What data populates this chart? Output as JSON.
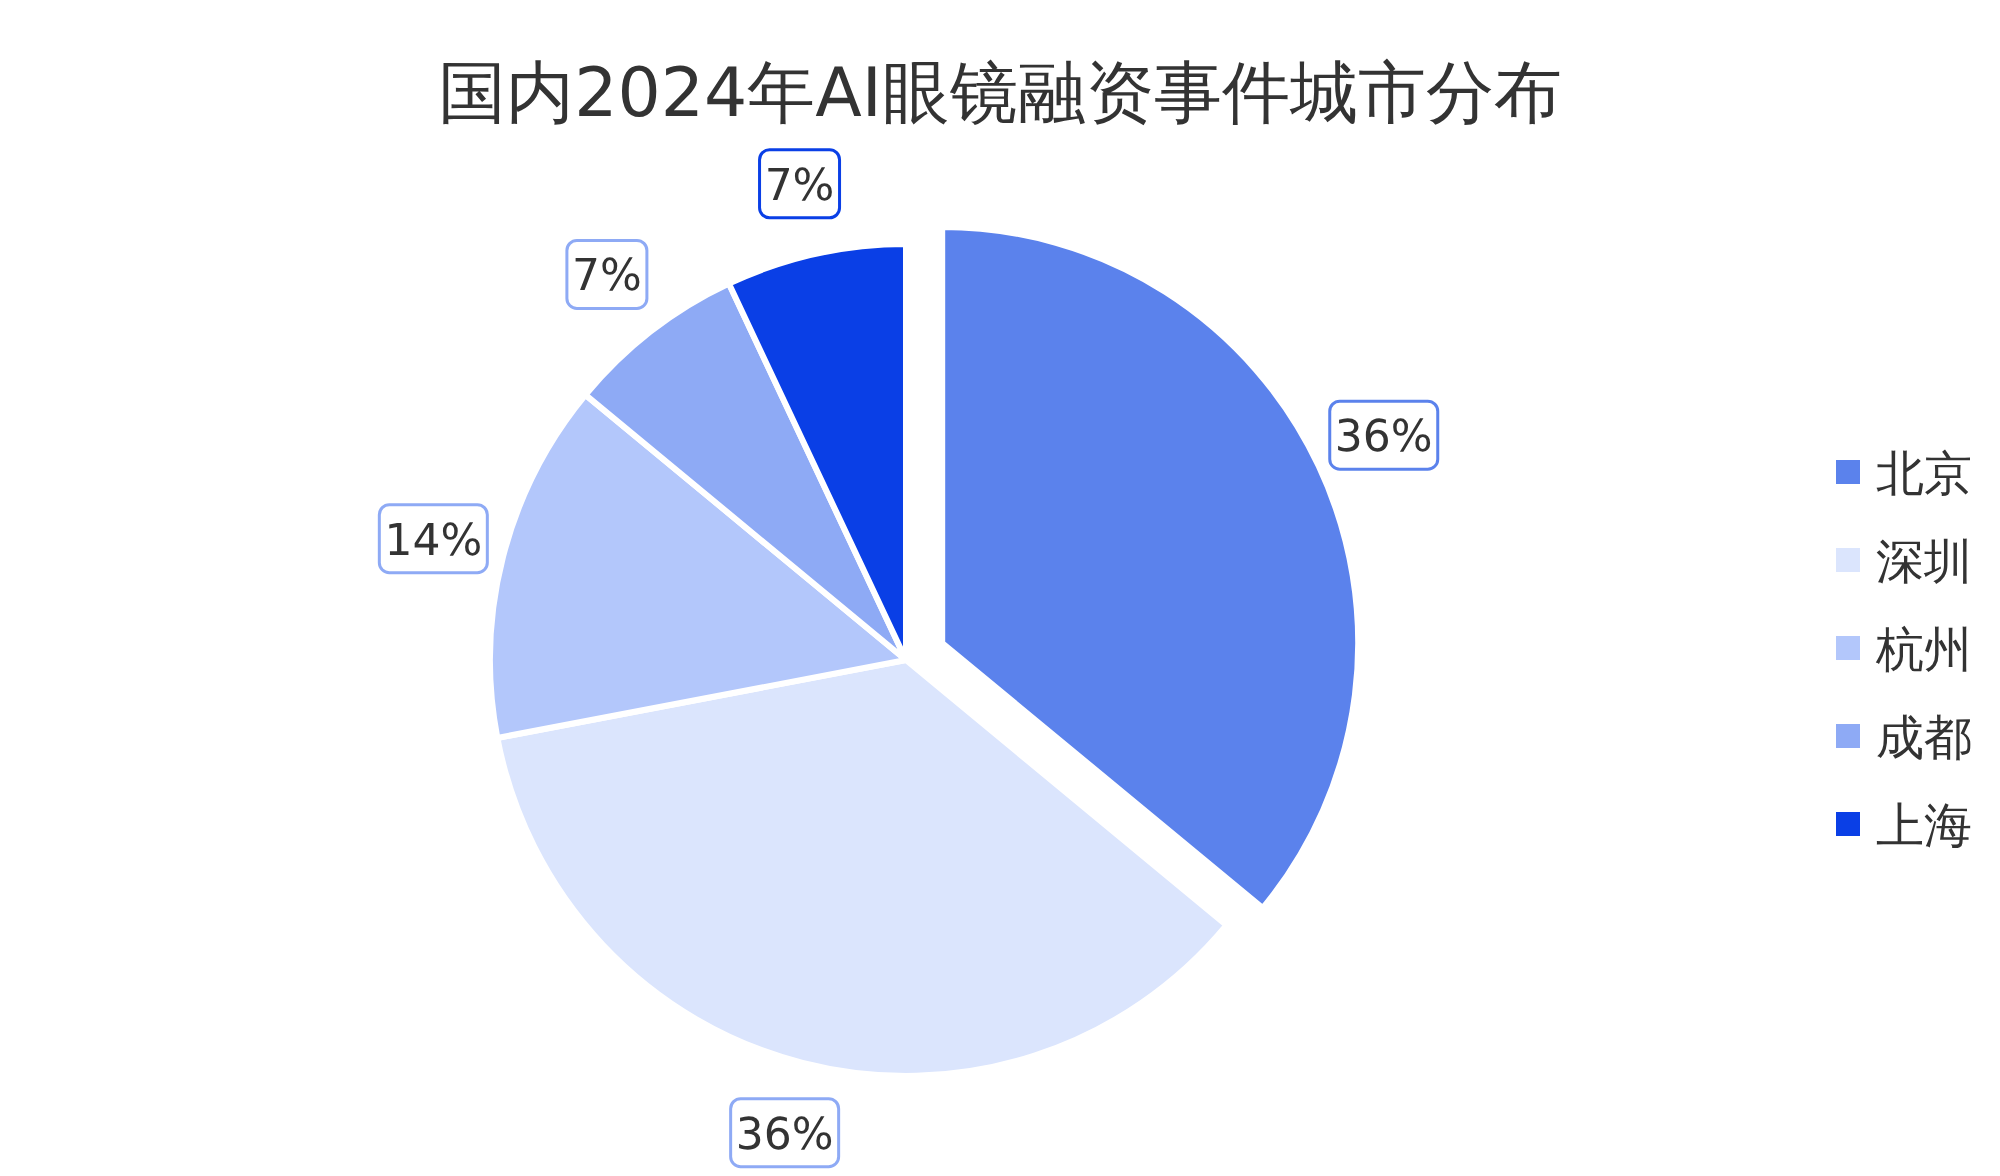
{
  "chart_data": {
    "type": "pie",
    "title": "国内2024年AI眼镜融资事件城市分布",
    "categories": [
      "北京",
      "深圳",
      "杭州",
      "成都",
      "上海"
    ],
    "values": [
      36,
      36,
      14,
      7,
      7
    ],
    "value_labels": [
      "36%",
      "36%",
      "14%",
      "7%",
      "7%"
    ],
    "colors": [
      "#5b82ec",
      "#dbe5fd",
      "#b3c7fb",
      "#8eaaf5",
      "#0a3fe6"
    ],
    "legend": "right"
  }
}
